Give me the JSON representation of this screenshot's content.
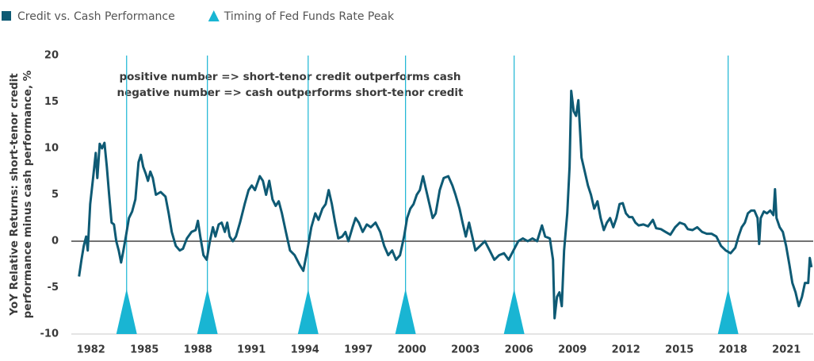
{
  "chart_data": {
    "type": "line",
    "ylabel": [
      "YoY Relative Returns: short-tenor credit",
      "performance minus cash performance, %"
    ],
    "annotations": [
      "positive number => short-tenor credit outperforms cash",
      "negative number => cash outperforms short-tenor credit"
    ],
    "xlim": [
      1980.9,
      2022.5
    ],
    "xticks": [
      1982,
      1985,
      1988,
      1991,
      1994,
      1997,
      2000,
      2003,
      2006,
      2009,
      2012,
      2015,
      2018,
      2021
    ],
    "ylim": [
      -10,
      20
    ],
    "yticks": [
      -10,
      -5,
      0,
      5,
      10,
      15,
      20
    ],
    "zero_line": true,
    "x": [
      1981.33,
      1981.47,
      1981.6,
      1981.73,
      1981.82,
      1981.96,
      1982.13,
      1982.27,
      1982.36,
      1982.49,
      1982.62,
      1982.76,
      1982.89,
      1983.02,
      1983.16,
      1983.29,
      1983.42,
      1983.56,
      1983.69,
      1983.82,
      1983.96,
      1984.13,
      1984.31,
      1984.49,
      1984.67,
      1984.8,
      1984.93,
      1985.07,
      1985.2,
      1985.33,
      1985.47,
      1985.64,
      1985.91,
      1986.18,
      1986.36,
      1986.53,
      1986.76,
      1986.98,
      1987.16,
      1987.38,
      1987.64,
      1987.87,
      1988.0,
      1988.13,
      1988.31,
      1988.49,
      1988.67,
      1988.84,
      1988.98,
      1989.16,
      1989.33,
      1989.51,
      1989.64,
      1989.78,
      1989.96,
      1990.13,
      1990.36,
      1990.62,
      1990.84,
      1991.02,
      1991.2,
      1991.47,
      1991.64,
      1991.82,
      1992.0,
      1992.18,
      1992.36,
      1992.53,
      1992.71,
      1992.93,
      1993.16,
      1993.42,
      1993.69,
      1993.91,
      1994.13,
      1994.36,
      1994.58,
      1994.76,
      1994.98,
      1995.16,
      1995.33,
      1995.51,
      1995.69,
      1995.87,
      1996.09,
      1996.27,
      1996.44,
      1996.67,
      1996.84,
      1997.02,
      1997.24,
      1997.47,
      1997.69,
      1997.96,
      1998.22,
      1998.44,
      1998.67,
      1998.89,
      1999.11,
      1999.33,
      1999.56,
      1999.73,
      1999.91,
      2000.09,
      2000.27,
      2000.44,
      2000.62,
      2000.8,
      2000.98,
      2001.16,
      2001.33,
      2001.56,
      2001.78,
      2002.04,
      2002.27,
      2002.44,
      2002.67,
      2002.84,
      2003.02,
      2003.2,
      2003.38,
      2003.56,
      2003.82,
      2004.09,
      2004.36,
      2004.62,
      2004.89,
      2005.16,
      2005.42,
      2005.69,
      2005.96,
      2006.22,
      2006.49,
      2006.76,
      2007.02,
      2007.29,
      2007.47,
      2007.73,
      2007.91,
      2008.0,
      2008.13,
      2008.27,
      2008.4,
      2008.53,
      2008.71,
      2008.84,
      2008.93,
      2009.07,
      2009.2,
      2009.33,
      2009.51,
      2009.69,
      2009.87,
      2010.04,
      2010.22,
      2010.4,
      2010.58,
      2010.76,
      2010.93,
      2011.11,
      2011.29,
      2011.47,
      2011.64,
      2011.82,
      2012.0,
      2012.18,
      2012.36,
      2012.53,
      2012.71,
      2012.98,
      2013.24,
      2013.51,
      2013.69,
      2013.96,
      2014.22,
      2014.49,
      2014.76,
      2015.02,
      2015.29,
      2015.47,
      2015.73,
      2016.0,
      2016.27,
      2016.53,
      2016.8,
      2017.07,
      2017.33,
      2017.6,
      2017.87,
      2018.13,
      2018.31,
      2018.49,
      2018.67,
      2018.84,
      2019.02,
      2019.2,
      2019.38,
      2019.47,
      2019.56,
      2019.73,
      2019.91,
      2020.09,
      2020.27,
      2020.36,
      2020.44,
      2020.62,
      2020.8,
      2020.98,
      2021.16,
      2021.33,
      2021.51,
      2021.69,
      2021.87,
      2022.04,
      2022.22,
      2022.31,
      2022.4
    ],
    "series": [
      {
        "name": "Credit vs. Cash Performance",
        "color": "#0e5a74",
        "values": [
          -3.8,
          -2,
          -0.5,
          0.5,
          -1,
          4,
          7,
          9.5,
          6.8,
          10.5,
          10,
          10.6,
          8,
          5,
          2,
          1.8,
          0,
          -1,
          -2.3,
          -1,
          0.5,
          2.5,
          3.2,
          4.5,
          8.5,
          9.3,
          8,
          7.3,
          6.5,
          7.5,
          6.8,
          5,
          5.3,
          4.8,
          3,
          1,
          -0.5,
          -1,
          -0.8,
          0.3,
          1,
          1.2,
          2.2,
          0.5,
          -1.5,
          -2,
          0,
          1.5,
          0.5,
          1.8,
          2,
          1,
          2,
          0.5,
          0,
          0.5,
          2,
          4,
          5.5,
          6,
          5.5,
          7,
          6.5,
          5,
          6.5,
          4.5,
          3.8,
          4.3,
          3,
          1,
          -1,
          -1.5,
          -2.5,
          -3.2,
          -1,
          1.5,
          3,
          2.3,
          3.5,
          4,
          5.5,
          4,
          2,
          0.3,
          0.5,
          1,
          0,
          1.5,
          2.5,
          2,
          1,
          1.8,
          1.5,
          2,
          1,
          -0.5,
          -1.5,
          -1,
          -2,
          -1.5,
          0.5,
          2.5,
          3.5,
          4,
          5,
          5.5,
          7,
          5.5,
          4,
          2.5,
          3,
          5.5,
          6.8,
          7,
          6,
          5,
          3.5,
          2,
          0.5,
          2,
          0.5,
          -1,
          -0.5,
          0,
          -1,
          -2,
          -1.5,
          -1.3,
          -2,
          -1,
          0,
          0.3,
          0,
          0.3,
          0,
          1.7,
          0.5,
          0.3,
          -2,
          -8.3,
          -6,
          -5.5,
          -7,
          -1,
          3,
          8,
          16.2,
          14,
          13.5,
          15.2,
          9,
          7.5,
          6,
          5,
          3.5,
          4.3,
          2.5,
          1.2,
          2,
          2.5,
          1.5,
          2.5,
          4,
          4.1,
          3,
          2.6,
          2.6,
          2,
          1.7,
          1.8,
          1.6,
          2.3,
          1.4,
          1.3,
          1,
          0.7,
          1.5,
          2,
          1.8,
          1.3,
          1.2,
          1.5,
          1,
          0.8,
          0.8,
          0.5,
          -0.5,
          -1,
          -1.3,
          -0.7,
          0.5,
          1.5,
          2,
          3,
          3.3,
          3.3,
          2.5,
          -0.3,
          2.5,
          3.2,
          3,
          3.3,
          2.8,
          5.6,
          2.5,
          1.5,
          1,
          -0.5,
          -2.5,
          -4.5,
          -5.5,
          -7,
          -6,
          -4.5,
          -4.5,
          -1.8,
          -2.8
        ]
      },
      {
        "name": "Timing of Fed Funds Rate Peak",
        "color": "#19b5d3",
        "type": "event",
        "x": [
          1984.0,
          1988.53,
          1994.18,
          1999.64,
          2005.73,
          2017.73
        ]
      }
    ]
  }
}
